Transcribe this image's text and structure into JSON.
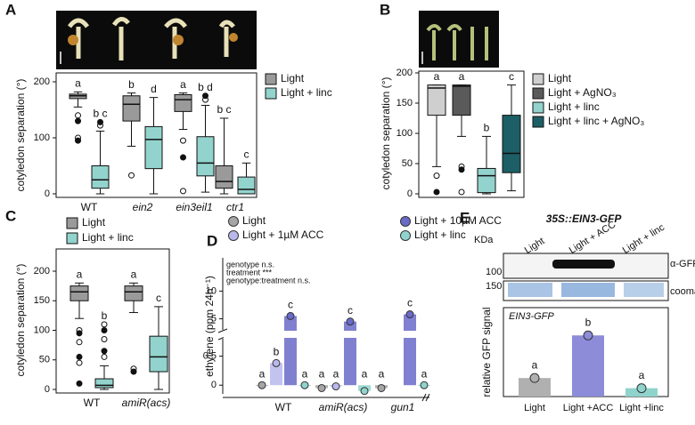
{
  "chart_data": [
    {
      "type": "box",
      "label": "A",
      "ylabel": "cotyledon separation (°)",
      "ylim": [
        0,
        200
      ],
      "yticks": [
        0,
        100,
        200
      ],
      "categories": [
        "WT",
        "ein2",
        "ein3eil1",
        "ctr1"
      ],
      "series": [
        {
          "name": "Light",
          "color": "#9a9a9a",
          "letters": [
            "a",
            "b",
            "a",
            "b c"
          ],
          "boxes": [
            {
              "min": 155,
              "q1": 170,
              "median": 175,
              "q3": 178,
              "max": 182,
              "outliers": [
                140,
                130,
                100,
                95
              ]
            },
            {
              "min": 85,
              "q1": 130,
              "median": 160,
              "q3": 175,
              "max": 180,
              "outliers": [
                33
              ]
            },
            {
              "min": 115,
              "q1": 147,
              "median": 168,
              "q3": 177,
              "max": 180,
              "outliers": [
                95,
                65,
                5
              ]
            },
            {
              "min": 0,
              "q1": 10,
              "median": 22,
              "q3": 50,
              "max": 135,
              "outliers": []
            }
          ]
        },
        {
          "name": "Light + linc",
          "color": "#93d3cd",
          "letters": [
            "b c",
            "d",
            "b d",
            "c"
          ],
          "boxes": [
            {
              "min": 0,
              "q1": 10,
              "median": 25,
              "q3": 50,
              "max": 112,
              "outliers": [
                122,
                128
              ]
            },
            {
              "min": 0,
              "q1": 45,
              "median": 97,
              "q3": 120,
              "max": 172,
              "outliers": []
            },
            {
              "min": 3,
              "q1": 32,
              "median": 55,
              "q3": 102,
              "max": 158,
              "outliers": [
                168,
                175
              ]
            },
            {
              "min": 0,
              "q1": 0,
              "median": 8,
              "q3": 30,
              "max": 55,
              "outliers": []
            }
          ]
        }
      ]
    },
    {
      "type": "box",
      "label": "B",
      "ylabel": "cotyledon separation (°)",
      "ylim": [
        0,
        200
      ],
      "yticks": [
        0,
        50,
        100,
        150,
        200
      ],
      "series": [
        {
          "name": "Light",
          "color": "#cfcfcf",
          "letters": [
            "a"
          ],
          "boxes": [
            {
              "min": 45,
              "q1": 130,
              "median": 175,
              "q3": 180,
              "max": 180,
              "outliers": [
                30,
                3
              ]
            }
          ]
        },
        {
          "name": "Light + AgNO₃",
          "color": "#5a5a5a",
          "letters": [
            "a"
          ],
          "boxes": [
            {
              "min": 95,
              "q1": 130,
              "median": 178,
              "q3": 180,
              "max": 180,
              "outliers": [
                45,
                40,
                3
              ]
            }
          ]
        },
        {
          "name": "Light + linc",
          "color": "#93d3cd",
          "letters": [
            "b"
          ],
          "boxes": [
            {
              "min": 0,
              "q1": 2,
              "median": 30,
              "q3": 42,
              "max": 95,
              "outliers": []
            }
          ]
        },
        {
          "name": "Light + linc + AgNO₃",
          "color": "#1d5f66",
          "letters": [
            "c"
          ],
          "boxes": [
            {
              "min": 5,
              "q1": 35,
              "median": 67,
              "q3": 130,
              "max": 180,
              "outliers": []
            }
          ]
        }
      ]
    },
    {
      "type": "box",
      "label": "C",
      "ylabel": "cotyledon separation (°)",
      "ylim": [
        0,
        200
      ],
      "yticks": [
        0,
        50,
        100,
        150,
        200
      ],
      "categories": [
        "WT",
        "amiR(acs)"
      ],
      "series": [
        {
          "name": "Light",
          "color": "#9a9a9a",
          "letters": [
            "a",
            "a"
          ],
          "boxes": [
            {
              "min": 120,
              "q1": 150,
              "median": 165,
              "q3": 175,
              "max": 180,
              "outliers": [
                100,
                95,
                80,
                55,
                45,
                10
              ]
            },
            {
              "min": 130,
              "q1": 150,
              "median": 165,
              "q3": 175,
              "max": 180,
              "outliers": [
                35,
                30
              ]
            }
          ]
        },
        {
          "name": "Light + linc",
          "color": "#93d3cd",
          "letters": [
            "b",
            "c"
          ],
          "boxes": [
            {
              "min": 0,
              "q1": 3,
              "median": 7,
              "q3": 18,
              "max": 40,
              "outliers": [
                55,
                65,
                85,
                100,
                110
              ]
            },
            {
              "min": 0,
              "q1": 30,
              "median": 55,
              "q3": 90,
              "max": 140,
              "outliers": []
            }
          ]
        }
      ]
    },
    {
      "type": "bar",
      "label": "D",
      "ylabel": "ethylene (ppm 24h⁻¹)",
      "ylim": [
        -0.15,
        16
      ],
      "ybreak": [
        0.8,
        3
      ],
      "yticks": [
        0,
        0.5,
        5,
        10
      ],
      "annotations": [
        "genotype n.s.",
        "treatment ***",
        "genotype:treatment n.s."
      ],
      "categories": [
        "WT",
        "amiR(acs)",
        "gun1"
      ],
      "series": [
        {
          "name": "Light",
          "color": "#a6a6a6",
          "values": [
            0.0,
            -0.05,
            -0.05
          ],
          "letters": [
            "a",
            "a",
            "a"
          ]
        },
        {
          "name": "Light + 1µM ACC",
          "color": "#b8b8ec",
          "values": [
            0.38,
            -0.02,
            null
          ],
          "letters": [
            "b",
            "a",
            null
          ]
        },
        {
          "name": "Light + 10µM ACC",
          "color": "#6a6ac8",
          "values": [
            5.5,
            4.5,
            5.8
          ],
          "letters": [
            "c",
            "c",
            "c"
          ]
        },
        {
          "name": "Light + linc",
          "color": "#8fd3cc",
          "values": [
            0.0,
            -0.1,
            0.0
          ],
          "letters": [
            "a",
            "a",
            "a"
          ]
        }
      ]
    },
    {
      "type": "bar",
      "label": "E",
      "ylabel": "relative GFP signal",
      "inset_label": "EIN3-GFP",
      "ylim": [
        0,
        4.8
      ],
      "categories": [
        "Light",
        "Light +ACC",
        "Light +linc"
      ],
      "values": [
        1,
        3.3,
        0.45
      ],
      "colors": [
        "#b0b0b0",
        "#8c8cd9",
        "#8fd3cc"
      ],
      "letters": [
        "a",
        "b",
        "a"
      ],
      "blot": {
        "title": "35S::EIN3-GFP",
        "lanes": [
          "Light",
          "Light + ACC",
          "Light + linc"
        ],
        "unit": "KDa",
        "markers": [
          100,
          150
        ],
        "antibody": "α-GFP",
        "stain": "coomassie"
      }
    }
  ]
}
